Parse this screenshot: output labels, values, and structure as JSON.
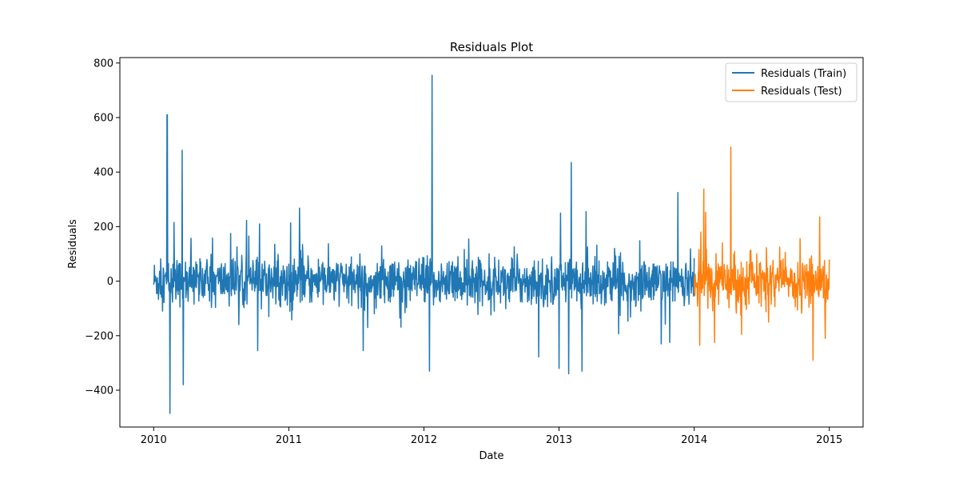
{
  "chart_data": {
    "type": "line",
    "title": "Residuals Plot",
    "xlabel": "Date",
    "ylabel": "Residuals",
    "xlim": [
      2009.75,
      2015.25
    ],
    "ylim": [
      -535,
      820
    ],
    "x_ticks": [
      2010,
      2011,
      2012,
      2013,
      2014,
      2015
    ],
    "x_tick_labels": [
      "2010",
      "2011",
      "2012",
      "2013",
      "2014",
      "2015"
    ],
    "y_ticks": [
      -400,
      -200,
      0,
      200,
      400,
      600,
      800
    ],
    "y_tick_labels": [
      "−400",
      "−200",
      "0",
      "200",
      "400",
      "600",
      "800"
    ],
    "grid": false,
    "legend": "top-right",
    "series": [
      {
        "name": "Residuals (Train)",
        "color": "#1f77b4",
        "x_range": [
          2010.0,
          2014.0
        ],
        "spikes": [
          [
            2010.1,
            610
          ],
          [
            2010.12,
            -485
          ],
          [
            2010.21,
            480
          ],
          [
            2010.22,
            -380
          ],
          [
            2010.15,
            215
          ],
          [
            2010.57,
            175
          ],
          [
            2010.77,
            -255
          ],
          [
            2011.08,
            268
          ],
          [
            2011.55,
            -255
          ],
          [
            2012.04,
            -330
          ],
          [
            2012.06,
            755
          ],
          [
            2013.01,
            250
          ],
          [
            2013.07,
            -340
          ],
          [
            2013.09,
            435
          ],
          [
            2013.17,
            -330
          ],
          [
            2013.2,
            255
          ],
          [
            2013.82,
            -225
          ],
          [
            2013.88,
            325
          ],
          [
            2013.0,
            -320
          ],
          [
            2012.85,
            -278
          ]
        ]
      },
      {
        "name": "Residuals (Test)",
        "color": "#ff7f0e",
        "x_range": [
          2014.0,
          2015.0
        ],
        "spikes": [
          [
            2014.07,
            338
          ],
          [
            2014.04,
            -235
          ],
          [
            2014.27,
            492
          ],
          [
            2014.15,
            -225
          ],
          [
            2014.35,
            210
          ],
          [
            2014.35,
            -195
          ],
          [
            2014.88,
            -290
          ],
          [
            2014.93,
            235
          ],
          [
            2014.97,
            200
          ],
          [
            2014.97,
            -210
          ],
          [
            2014.55,
            -150
          ],
          [
            2014.05,
            180
          ]
        ]
      }
    ]
  }
}
